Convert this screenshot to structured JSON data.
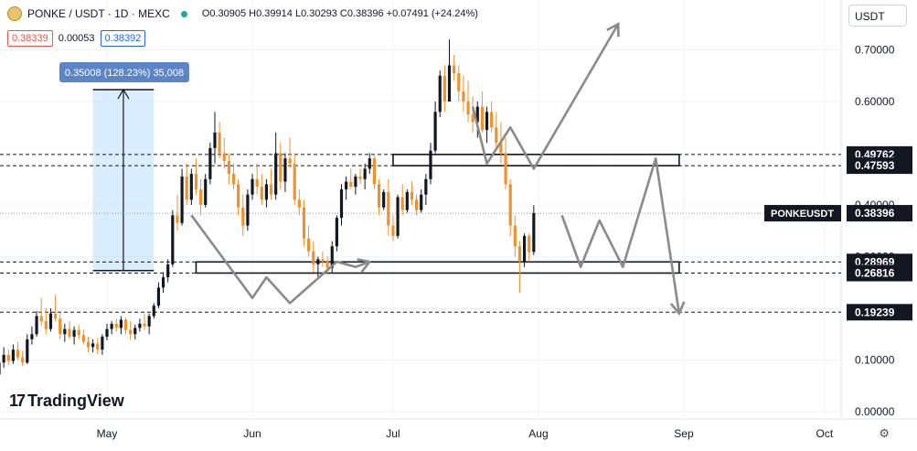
{
  "header": {
    "symbol_title": "PONKE / USDT · 1D · MEXC",
    "ohlc": "O0.30905 H0.39914 L0.30293 C0.38396 +0.07491 (+24.24%)",
    "sell_price": "0.38339",
    "spread": "0.00053",
    "buy_price": "0.38392"
  },
  "currency_button": "USDT",
  "brand": "TradingView",
  "colors": {
    "up": "#131722",
    "down": "#f0912c",
    "measure_fill": "#bbdefb",
    "measure_label": "#5c85c8",
    "arrows": "#8a8a8a"
  },
  "chart_data": {
    "type": "candlestick",
    "ylim": [
      0,
      0.74
    ],
    "y_ticks": [
      "0.00000",
      "0.10000",
      "0.20000",
      "0.30000",
      "0.40000",
      "0.50000",
      "0.60000",
      "0.70000"
    ],
    "x_ticks": [
      {
        "label": "May",
        "date": "2024-05-01"
      },
      {
        "label": "Jun",
        "date": "2024-06-01"
      },
      {
        "label": "Jul",
        "date": "2024-07-01"
      },
      {
        "label": "Aug",
        "date": "2024-08-01"
      },
      {
        "label": "Sep",
        "date": "2024-09-01"
      },
      {
        "label": "Oct",
        "date": "2024-10-01"
      }
    ],
    "start_date": "2024-04-06",
    "last_price_label": "PONKEUSDT",
    "last_price": "0.38396",
    "levels": [
      {
        "label": "0.49762",
        "value": 0.49762
      },
      {
        "label": "0.47593",
        "value": 0.47593
      },
      {
        "label": "0.28969",
        "value": 0.28969
      },
      {
        "label": "0.26816",
        "value": 0.26816
      },
      {
        "label": "0.19239",
        "value": 0.19239
      }
    ],
    "zones": [
      {
        "start": "2024-07-01",
        "end": "2024-08-31",
        "low": 0.47593,
        "high": 0.49762
      },
      {
        "start": "2024-05-20",
        "end": "2024-08-31",
        "low": 0.26816,
        "high": 0.28969
      }
    ],
    "measure": {
      "label": "0.35008 (128.23%) 35,008",
      "start": "2024-04-28",
      "end": "2024-05-11",
      "low": 0.27303,
      "high": 0.62311
    },
    "path_arrows": [
      [
        [
          "2024-05-19",
          0.38
        ],
        [
          "2024-06-01",
          0.22
        ],
        [
          "2024-06-04",
          0.26
        ],
        [
          "2024-06-09",
          0.21
        ],
        [
          "2024-06-19",
          0.29
        ],
        [
          "2024-06-23",
          0.28
        ],
        [
          "2024-06-26",
          0.29
        ]
      ],
      [
        [
          "2024-07-18",
          0.59
        ],
        [
          "2024-07-21",
          0.48
        ],
        [
          "2024-07-26",
          0.55
        ],
        [
          "2024-07-31",
          0.47
        ],
        [
          "2024-08-18",
          0.75
        ]
      ],
      [
        [
          "2024-08-06",
          0.38
        ],
        [
          "2024-08-10",
          0.28
        ],
        [
          "2024-08-14",
          0.37
        ],
        [
          "2024-08-19",
          0.28
        ],
        [
          "2024-08-26",
          0.49
        ],
        [
          "2024-08-31",
          0.19
        ]
      ]
    ],
    "ohlc_data": [
      [
        0.062,
        0.075,
        0.055,
        0.068
      ],
      [
        0.068,
        0.08,
        0.06,
        0.072
      ],
      [
        0.072,
        0.1,
        0.068,
        0.095
      ],
      [
        0.095,
        0.125,
        0.085,
        0.11
      ],
      [
        0.11,
        0.12,
        0.09,
        0.098
      ],
      [
        0.098,
        0.13,
        0.092,
        0.12
      ],
      [
        0.12,
        0.135,
        0.1,
        0.105
      ],
      [
        0.105,
        0.118,
        0.088,
        0.095
      ],
      [
        0.095,
        0.15,
        0.092,
        0.14
      ],
      [
        0.14,
        0.165,
        0.13,
        0.15
      ],
      [
        0.15,
        0.195,
        0.145,
        0.185
      ],
      [
        0.185,
        0.22,
        0.165,
        0.175
      ],
      [
        0.175,
        0.2,
        0.15,
        0.16
      ],
      [
        0.16,
        0.2,
        0.155,
        0.19
      ],
      [
        0.19,
        0.225,
        0.175,
        0.18
      ],
      [
        0.18,
        0.19,
        0.14,
        0.15
      ],
      [
        0.15,
        0.17,
        0.135,
        0.16
      ],
      [
        0.16,
        0.175,
        0.14,
        0.145
      ],
      [
        0.145,
        0.165,
        0.13,
        0.158
      ],
      [
        0.158,
        0.168,
        0.14,
        0.148
      ],
      [
        0.148,
        0.16,
        0.13,
        0.135
      ],
      [
        0.135,
        0.145,
        0.115,
        0.125
      ],
      [
        0.125,
        0.14,
        0.115,
        0.132
      ],
      [
        0.132,
        0.142,
        0.112,
        0.12
      ],
      [
        0.12,
        0.15,
        0.11,
        0.145
      ],
      [
        0.145,
        0.17,
        0.138,
        0.16
      ],
      [
        0.16,
        0.175,
        0.15,
        0.17
      ],
      [
        0.17,
        0.18,
        0.155,
        0.162
      ],
      [
        0.162,
        0.185,
        0.15,
        0.178
      ],
      [
        0.178,
        0.182,
        0.15,
        0.158
      ],
      [
        0.158,
        0.175,
        0.14,
        0.15
      ],
      [
        0.15,
        0.168,
        0.14,
        0.162
      ],
      [
        0.162,
        0.18,
        0.155,
        0.17
      ],
      [
        0.17,
        0.19,
        0.158,
        0.165
      ],
      [
        0.165,
        0.19,
        0.15,
        0.185
      ],
      [
        0.185,
        0.21,
        0.18,
        0.205
      ],
      [
        0.205,
        0.25,
        0.2,
        0.24
      ],
      [
        0.24,
        0.27,
        0.23,
        0.26
      ],
      [
        0.26,
        0.295,
        0.25,
        0.285
      ],
      [
        0.285,
        0.39,
        0.28,
        0.38
      ],
      [
        0.38,
        0.42,
        0.35,
        0.365
      ],
      [
        0.365,
        0.47,
        0.36,
        0.455
      ],
      [
        0.455,
        0.48,
        0.4,
        0.41
      ],
      [
        0.41,
        0.47,
        0.4,
        0.46
      ],
      [
        0.46,
        0.49,
        0.42,
        0.43
      ],
      [
        0.43,
        0.45,
        0.38,
        0.4
      ],
      [
        0.4,
        0.46,
        0.395,
        0.45
      ],
      [
        0.45,
        0.52,
        0.44,
        0.51
      ],
      [
        0.51,
        0.58,
        0.48,
        0.54
      ],
      [
        0.54,
        0.56,
        0.49,
        0.5
      ],
      [
        0.5,
        0.53,
        0.47,
        0.485
      ],
      [
        0.485,
        0.5,
        0.44,
        0.46
      ],
      [
        0.46,
        0.48,
        0.43,
        0.44
      ],
      [
        0.44,
        0.45,
        0.38,
        0.395
      ],
      [
        0.395,
        0.42,
        0.34,
        0.36
      ],
      [
        0.36,
        0.43,
        0.35,
        0.42
      ],
      [
        0.42,
        0.46,
        0.41,
        0.45
      ],
      [
        0.45,
        0.48,
        0.42,
        0.435
      ],
      [
        0.435,
        0.46,
        0.4,
        0.41
      ],
      [
        0.41,
        0.45,
        0.395,
        0.44
      ],
      [
        0.44,
        0.47,
        0.41,
        0.42
      ],
      [
        0.42,
        0.54,
        0.41,
        0.5
      ],
      [
        0.5,
        0.52,
        0.43,
        0.445
      ],
      [
        0.445,
        0.5,
        0.425,
        0.49
      ],
      [
        0.49,
        0.53,
        0.47,
        0.48
      ],
      [
        0.48,
        0.5,
        0.4,
        0.41
      ],
      [
        0.41,
        0.43,
        0.38,
        0.395
      ],
      [
        0.395,
        0.41,
        0.32,
        0.335
      ],
      [
        0.335,
        0.36,
        0.3,
        0.31
      ],
      [
        0.31,
        0.33,
        0.27,
        0.285
      ],
      [
        0.285,
        0.3,
        0.26,
        0.295
      ],
      [
        0.295,
        0.31,
        0.28,
        0.29
      ],
      [
        0.29,
        0.3,
        0.265,
        0.278
      ],
      [
        0.278,
        0.33,
        0.27,
        0.32
      ],
      [
        0.32,
        0.38,
        0.31,
        0.375
      ],
      [
        0.375,
        0.44,
        0.36,
        0.43
      ],
      [
        0.43,
        0.455,
        0.41,
        0.445
      ],
      [
        0.445,
        0.47,
        0.43,
        0.435
      ],
      [
        0.435,
        0.46,
        0.42,
        0.455
      ],
      [
        0.455,
        0.47,
        0.44,
        0.45
      ],
      [
        0.45,
        0.48,
        0.43,
        0.47
      ],
      [
        0.47,
        0.5,
        0.46,
        0.49
      ],
      [
        0.49,
        0.495,
        0.43,
        0.44
      ],
      [
        0.44,
        0.45,
        0.38,
        0.395
      ],
      [
        0.395,
        0.43,
        0.39,
        0.425
      ],
      [
        0.425,
        0.45,
        0.34,
        0.36
      ],
      [
        0.36,
        0.38,
        0.33,
        0.34
      ],
      [
        0.34,
        0.42,
        0.335,
        0.415
      ],
      [
        0.415,
        0.44,
        0.38,
        0.39
      ],
      [
        0.39,
        0.43,
        0.385,
        0.425
      ],
      [
        0.425,
        0.445,
        0.4,
        0.41
      ],
      [
        0.41,
        0.42,
        0.38,
        0.39
      ],
      [
        0.39,
        0.43,
        0.385,
        0.42
      ],
      [
        0.42,
        0.46,
        0.4,
        0.45
      ],
      [
        0.45,
        0.52,
        0.44,
        0.505
      ],
      [
        0.505,
        0.6,
        0.5,
        0.58
      ],
      [
        0.58,
        0.66,
        0.57,
        0.65
      ],
      [
        0.65,
        0.67,
        0.58,
        0.6
      ],
      [
        0.6,
        0.72,
        0.6,
        0.67
      ],
      [
        0.67,
        0.69,
        0.64,
        0.655
      ],
      [
        0.655,
        0.67,
        0.6,
        0.62
      ],
      [
        0.62,
        0.65,
        0.58,
        0.6
      ],
      [
        0.6,
        0.64,
        0.56,
        0.575
      ],
      [
        0.575,
        0.61,
        0.54,
        0.56
      ],
      [
        0.56,
        0.6,
        0.53,
        0.59
      ],
      [
        0.59,
        0.62,
        0.54,
        0.545
      ],
      [
        0.545,
        0.59,
        0.52,
        0.58
      ],
      [
        0.58,
        0.6,
        0.54,
        0.55
      ],
      [
        0.55,
        0.58,
        0.51,
        0.52
      ],
      [
        0.52,
        0.56,
        0.48,
        0.5
      ],
      [
        0.5,
        0.53,
        0.43,
        0.44
      ],
      [
        0.44,
        0.45,
        0.34,
        0.36
      ],
      [
        0.36,
        0.38,
        0.3,
        0.32
      ],
      [
        0.32,
        0.33,
        0.23,
        0.29
      ],
      [
        0.29,
        0.345,
        0.28,
        0.34
      ],
      [
        0.34,
        0.345,
        0.29,
        0.309
      ],
      [
        0.309,
        0.399,
        0.303,
        0.384
      ]
    ]
  }
}
